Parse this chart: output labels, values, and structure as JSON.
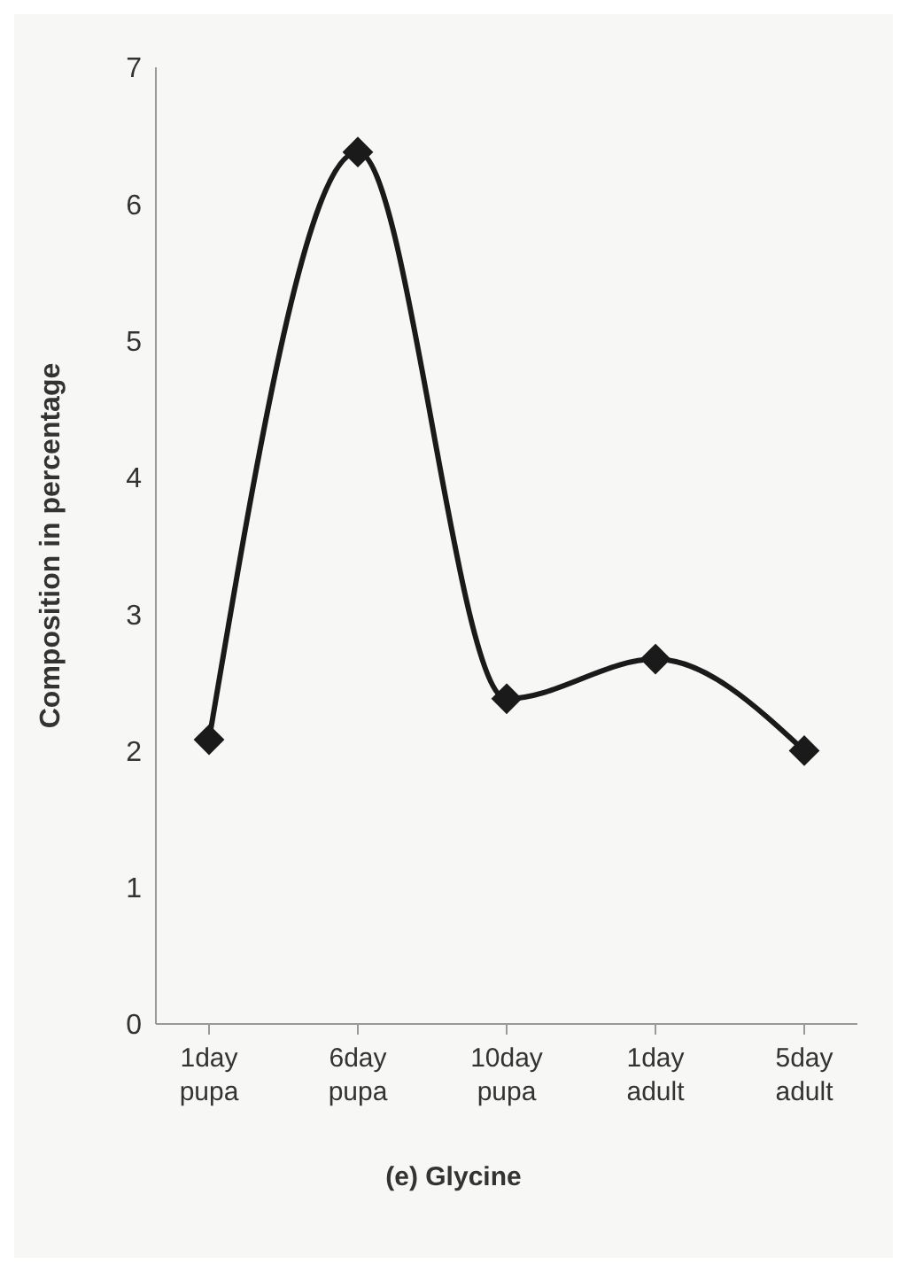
{
  "chart_data": {
    "type": "line",
    "title": "(e) Glycine",
    "ylabel": "Composition in percentage",
    "categories": [
      "1day\npupa",
      "6day\npupa",
      "10day\npupa",
      "1day\nadult",
      "5day\nadult"
    ],
    "series": [
      {
        "color": "#1a1a1a",
        "values": [
          2.08,
          6.38,
          2.38,
          2.67,
          2.0
        ]
      }
    ],
    "ylim": [
      0,
      7
    ],
    "yticks": [
      0,
      1,
      2,
      3,
      4,
      5,
      6,
      7
    ],
    "grid": false,
    "marker": "diamond",
    "line_style": "solid"
  }
}
